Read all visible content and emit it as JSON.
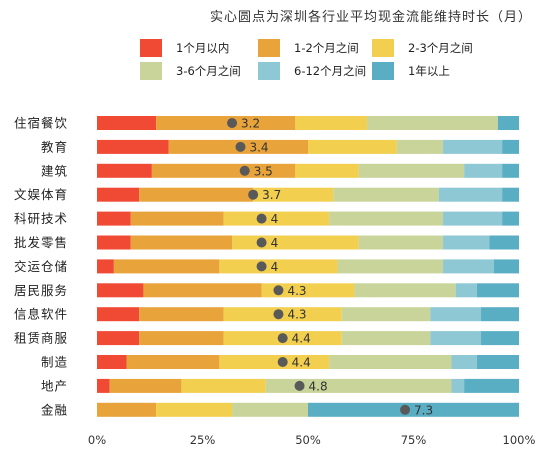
{
  "chart_data": {
    "type": "bar",
    "orientation": "horizontal",
    "stacked": true,
    "title": "实心圆点为深圳各行业平均现金流能维持时长（月）",
    "categories": [
      "住宿餐饮",
      "教育",
      "建筑",
      "文娱体育",
      "科研技术",
      "批发零售",
      "交运仓储",
      "居民服务",
      "信息软件",
      "租赁商服",
      "制造",
      "地产",
      "金融"
    ],
    "series": [
      {
        "name": "1个月以内",
        "color": "#f04a35",
        "values": [
          14,
          17,
          13,
          10,
          8,
          8,
          4,
          11,
          10,
          10,
          7,
          3,
          0
        ]
      },
      {
        "name": "1-2个月之间",
        "color": "#e8a33a",
        "values": [
          33,
          33,
          34,
          27,
          22,
          24,
          25,
          28,
          20,
          20,
          22,
          17,
          14
        ]
      },
      {
        "name": "2-3个月之间",
        "color": "#f2cf4f",
        "values": [
          17,
          21,
          15,
          19,
          25,
          30,
          28,
          22,
          28,
          28,
          26,
          20,
          18
        ]
      },
      {
        "name": "3-6个月之间",
        "color": "#c8d49a",
        "values": [
          31,
          11,
          25,
          25,
          27,
          20,
          25,
          24,
          21,
          21,
          29,
          44,
          18
        ]
      },
      {
        "name": "6-12个月之间",
        "color": "#8ec8d4",
        "values": [
          0,
          14,
          9,
          15,
          14,
          11,
          12,
          5,
          12,
          12,
          6,
          3,
          0
        ]
      },
      {
        "name": "1年以上",
        "color": "#5aaec4",
        "values": [
          5,
          4,
          4,
          4,
          4,
          7,
          6,
          10,
          9,
          9,
          10,
          13,
          50
        ]
      }
    ],
    "averages": [
      3.2,
      3.4,
      3.5,
      3.7,
      4,
      4,
      4,
      4.3,
      4.3,
      4.4,
      4.4,
      4.8,
      7.3
    ],
    "average_labels": [
      "3.2",
      "3.4",
      "3.5",
      "3.7",
      "4",
      "4",
      "4",
      "4.3",
      "4.3",
      "4.4",
      "4.4",
      "4.8",
      "7.3"
    ],
    "average_positions_pct": [
      32,
      34,
      35,
      37,
      39,
      39,
      39,
      43,
      43,
      44,
      44,
      48,
      73
    ],
    "xlim": [
      0,
      100
    ],
    "xticks": [
      "0%",
      "25%",
      "50%",
      "75%",
      "100%"
    ],
    "legend_position": "top",
    "grid": false,
    "dot_color": "#595959"
  }
}
